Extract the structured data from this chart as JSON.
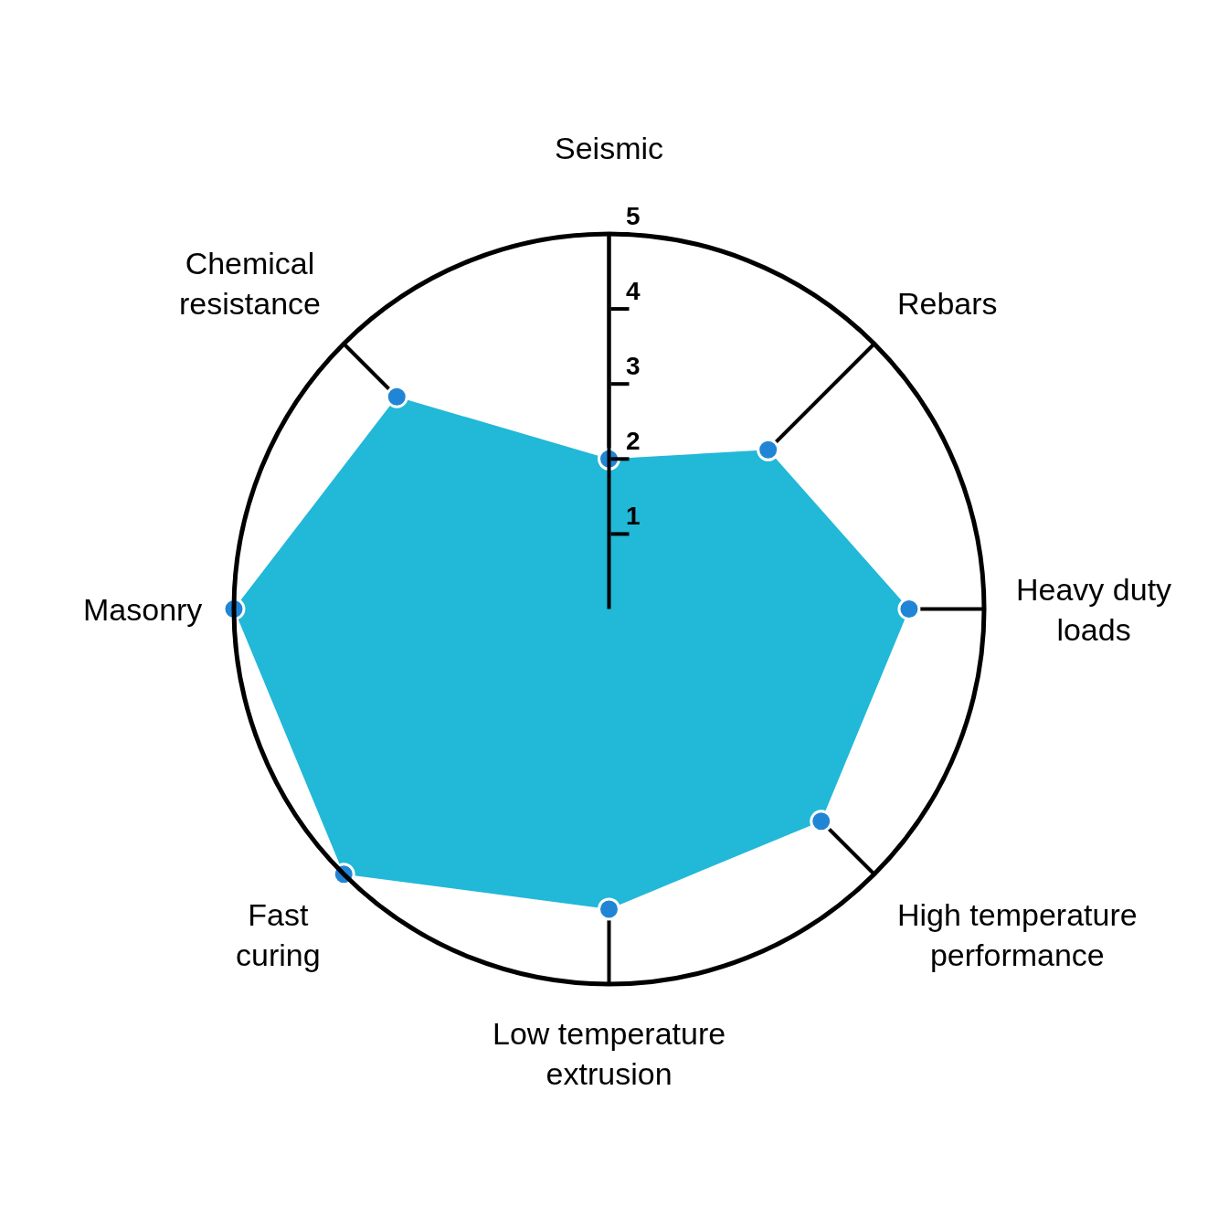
{
  "chart_data": {
    "type": "radar",
    "categories": [
      "Seismic",
      "Rebars",
      "Heavy duty\nloads",
      "High temperature\nperformance",
      "Low temperature\nextrusion",
      "Fast\ncuring",
      "Masonry",
      "Chemical\nresistance"
    ],
    "series": [
      {
        "color": "#22b8d8",
        "colors": [
          "#2185d5",
          "#2185d5",
          "#2185d5",
          "#2185d5",
          "#2185d5",
          "#2185d5",
          "#2185d5",
          "#2185d5"
        ],
        "values": [
          2,
          3,
          4,
          4,
          4,
          5,
          5,
          4
        ]
      }
    ],
    "ylim": [
      0,
      5
    ],
    "yticks": [
      1,
      2,
      3,
      4,
      5
    ],
    "marker": "circle",
    "grid": false
  }
}
